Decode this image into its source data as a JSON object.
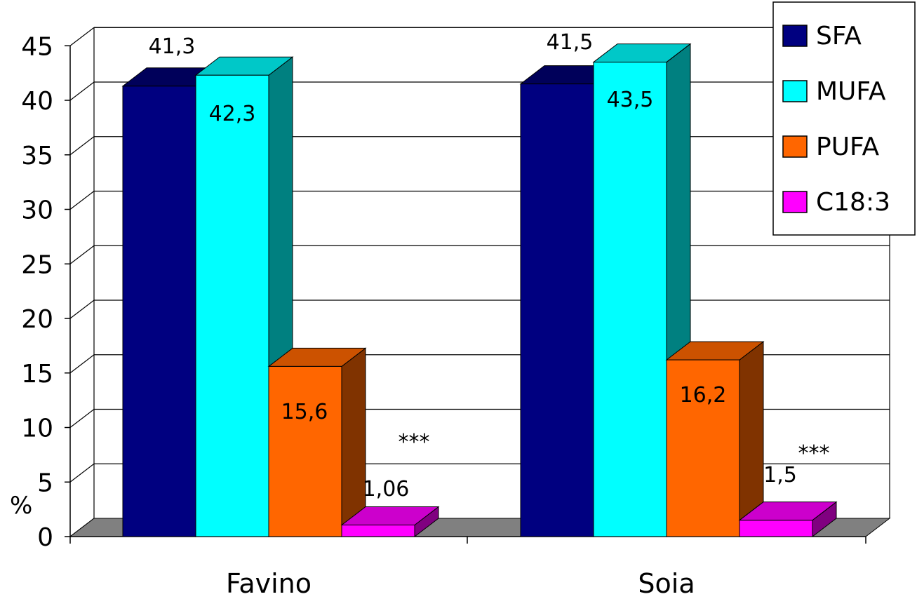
{
  "chart_data": {
    "type": "bar",
    "categories": [
      "Favino",
      "Soia"
    ],
    "series": [
      {
        "name": "SFA",
        "values": [
          41.3,
          41.5
        ],
        "labels": [
          "41,3",
          "41,5"
        ],
        "color": "#000080",
        "top": "#00005a",
        "side": "#000060"
      },
      {
        "name": "MUFA",
        "values": [
          42.3,
          43.5
        ],
        "labels": [
          "42,3",
          "43,5"
        ],
        "color": "#00ffff",
        "top": "#00c8c8",
        "side": "#008080"
      },
      {
        "name": "PUFA",
        "values": [
          15.6,
          16.2
        ],
        "labels": [
          "15,6",
          "16,2"
        ],
        "color": "#ff6600",
        "top": "#cc5200",
        "side": "#803300"
      },
      {
        "name": "C18:3",
        "values": [
          1.06,
          1.5
        ],
        "labels": [
          "1,06",
          "1,5"
        ],
        "color": "#ff00ff",
        "top": "#cc00cc",
        "side": "#800080"
      }
    ],
    "significance": [
      "***",
      "***"
    ],
    "yticks": [
      "0",
      "5",
      "10",
      "15",
      "20",
      "25",
      "30",
      "35",
      "40",
      "45"
    ],
    "ylim": [
      0,
      45
    ],
    "ylabel": "%",
    "grid": true,
    "legend_position": "top-right",
    "floor_color": "#808080"
  }
}
